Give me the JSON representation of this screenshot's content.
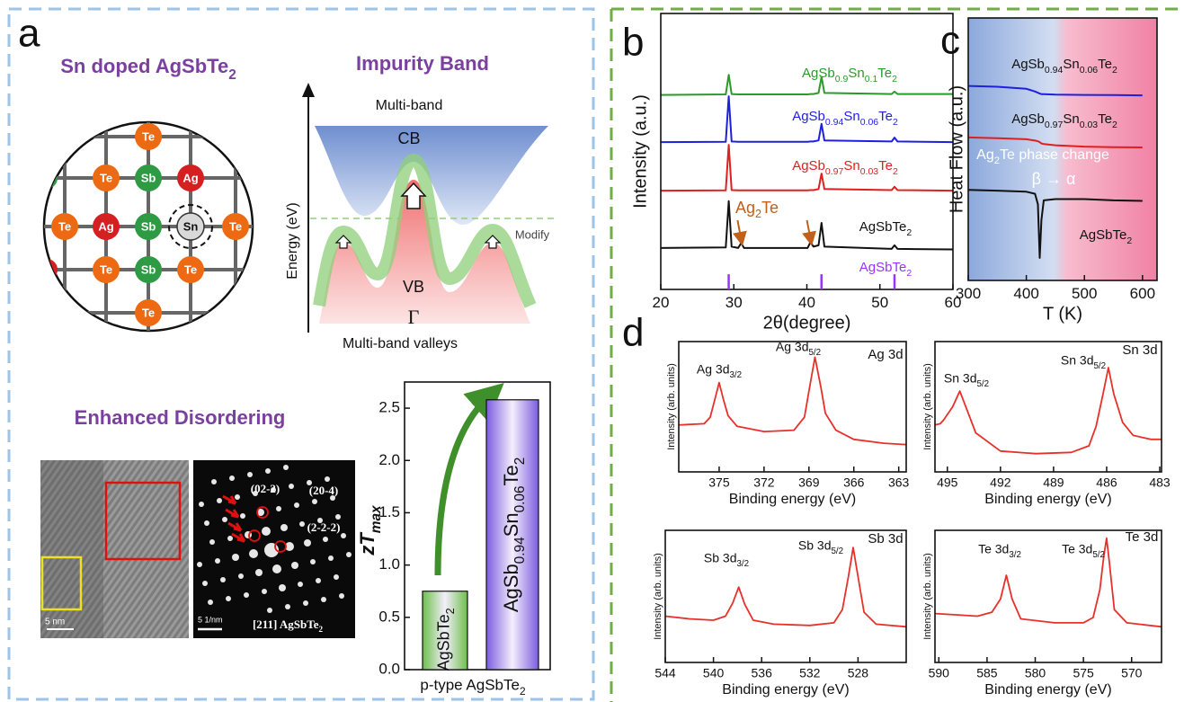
{
  "panel_labels": {
    "a": "a",
    "b": "b",
    "c": "c",
    "d": "d"
  },
  "schematic": {
    "structure_title": "Sn doped AgSbTe2",
    "atoms": [
      {
        "label": "Te",
        "color": "#ee6a12"
      },
      {
        "label": "Te",
        "color": "#ee6a12"
      },
      {
        "label": "Sb",
        "color": "#2e9a44"
      },
      {
        "label": "Ag",
        "color": "#d42020"
      },
      {
        "label": "Te",
        "color": "#ee6a12"
      },
      {
        "label": "Ag",
        "color": "#d42020"
      },
      {
        "label": "Sb",
        "color": "#2e9a44"
      },
      {
        "label": "Sn",
        "color": "#d9d9d9"
      },
      {
        "label": "Te",
        "color": "#ee6a12"
      },
      {
        "label": "Te",
        "color": "#ee6a12"
      },
      {
        "label": "Sb",
        "color": "#2e9a44"
      },
      {
        "label": "Te",
        "color": "#ee6a12"
      },
      {
        "label": "Te",
        "color": "#ee6a12"
      }
    ],
    "band_title": "Impurity Band",
    "band_top": "Multi-band",
    "cb": "CB",
    "vb": "VB",
    "gamma": "Γ",
    "band_bottom": "Multi-band valleys",
    "energy_axis": "Energy (eV)",
    "modify": "Modify",
    "disorder_title": "Enhanced Disordering",
    "tem": {
      "scale_hrtem": "5 nm",
      "scale_saed": "5 1/nm",
      "zone": "[211] AgSbTe2",
      "spots": [
        "(02-2)",
        "(20-4)",
        "(2-2-2)"
      ]
    }
  },
  "chart_data": [
    {
      "type": "bar",
      "ylabel": "zTmax",
      "xlabel": "p-type AgSbTe2",
      "categories": [
        "AgSbTe2",
        "AgSb0.94Sn0.06Te2"
      ],
      "values": [
        0.75,
        2.58
      ],
      "colors": [
        "#6cbf4b",
        "#7b5ce0"
      ],
      "ylim": [
        0,
        2.75
      ],
      "yticks": [
        {
          "value": 0,
          "label": "0.0"
        },
        0.5,
        {
          "value": 1,
          "label": "1.0"
        },
        1.5,
        {
          "value": 2,
          "label": "2.0"
        },
        2.5
      ]
    },
    {
      "type": "line",
      "xlabel": "2θ(degree)",
      "ylabel": "Intensity (a.u.)",
      "xlim": [
        20,
        60
      ],
      "xticks": [
        20,
        30,
        40,
        50,
        60
      ],
      "ylim": [
        0,
        10
      ],
      "x": [
        20,
        28.9,
        29.3,
        29.7,
        30.6,
        31,
        31.4,
        40.1,
        40.5,
        40.9,
        41.6,
        42,
        42.4,
        51.6,
        52,
        52.4,
        60
      ],
      "series": [
        {
          "name": "AgSb0.9Sn0.1Te2",
          "color": "#2a9a2a",
          "values": [
            7.05,
            7.07,
            7.78,
            7.08,
            7.07,
            7.07,
            7.07,
            7.07,
            7.08,
            7.08,
            7.12,
            7.7,
            7.12,
            7.08,
            7.17,
            7.08,
            7.08
          ]
        },
        {
          "name": "AgSb0.94Sn0.06Te2",
          "color": "#1f1fe0",
          "values": [
            5.34,
            5.35,
            7.0,
            5.36,
            5.35,
            5.35,
            5.35,
            5.35,
            5.36,
            5.36,
            5.4,
            6.0,
            5.4,
            5.36,
            5.5,
            5.36,
            5.34
          ]
        },
        {
          "name": "AgSb0.97Sn0.03Te2",
          "color": "#e01f1f",
          "values": [
            3.58,
            3.59,
            5.24,
            3.6,
            3.59,
            3.59,
            3.59,
            3.59,
            3.6,
            3.6,
            3.64,
            4.2,
            3.64,
            3.6,
            3.72,
            3.6,
            3.58
          ]
        },
        {
          "name": "AgSbTe2",
          "color": "#111111",
          "values": [
            1.5,
            1.52,
            3.2,
            1.55,
            1.5,
            1.68,
            1.5,
            1.5,
            1.72,
            1.55,
            1.6,
            2.41,
            1.55,
            1.47,
            1.6,
            1.47,
            1.45
          ]
        }
      ],
      "reference": {
        "name": "AgSbTe2",
        "color": "#9933ff",
        "x": [
          29.3,
          42,
          52
        ],
        "values": [
          0.55,
          0.55,
          0.55
        ]
      },
      "annotation": {
        "text": "Ag2Te",
        "color": "#c0601a",
        "x": [
          31,
          40.5
        ]
      }
    },
    {
      "type": "line",
      "xlabel": "T (K)",
      "ylabel": "Heat Flow (a.u.)",
      "xlim": [
        300,
        625
      ],
      "xticks": [
        300,
        400,
        500,
        600
      ],
      "ylim": [
        0,
        10
      ],
      "background_colors": [
        "#7f9fd8",
        "#f07aa0"
      ],
      "x": [
        300,
        350,
        400,
        415,
        420,
        423,
        426,
        430,
        450,
        500,
        550,
        600
      ],
      "series": [
        {
          "name": "AgSb0.94Sn0.06Te2",
          "color": "#1f1fe0",
          "values": [
            7.41,
            7.38,
            7.3,
            7.2,
            7.15,
            7.12,
            7.1,
            7.1,
            7.08,
            7.07,
            7.06,
            7.05
          ]
        },
        {
          "name": "AgSb0.97Sn0.03Te2",
          "color": "#e01f1f",
          "values": [
            5.45,
            5.42,
            5.38,
            5.33,
            5.3,
            5.27,
            5.22,
            5.2,
            5.15,
            5.1,
            5.08,
            5.07
          ]
        },
        {
          "name": "AgSbTe2",
          "color": "#111111",
          "values": [
            3.45,
            3.42,
            3.38,
            3.3,
            2.9,
            0.86,
            2.3,
            3.05,
            3.1,
            3.1,
            3.05,
            3.03
          ]
        }
      ],
      "annotations": [
        "Ag2Te phase change",
        "β → α"
      ]
    },
    {
      "type": "line",
      "title": "Ag 3d",
      "peak_labels": [
        "Ag 3d3/2",
        "Ag 3d5/2"
      ],
      "xlabel": "Binding energy (eV)",
      "ylabel": "Intensity (arb. units)",
      "xlim": [
        377.7,
        362.5
      ],
      "xticks": [
        375,
        372,
        369,
        366,
        363
      ],
      "ylim": [
        0,
        10
      ],
      "x": [
        377.7,
        376,
        375.6,
        375.3,
        375,
        374.7,
        374.4,
        373.8,
        372,
        370,
        369.3,
        369,
        368.6,
        368.2,
        367.9,
        367.2,
        366,
        364,
        362.5
      ],
      "series": [
        {
          "color": "#e8302a",
          "values": [
            3.6,
            3.7,
            4.2,
            5.5,
            6.85,
            5.5,
            4.3,
            3.5,
            3.1,
            3.2,
            4.2,
            6.2,
            8.8,
            6.5,
            4.5,
            3.2,
            2.5,
            2.2,
            2.1
          ]
        }
      ]
    },
    {
      "type": "line",
      "title": "Sn 3d",
      "peak_labels": [
        "Sn 3d5/2",
        "Sn 3d5/2"
      ],
      "xlabel": "Binding energy (eV)",
      "ylabel": "Intensity (arb. units)",
      "xlim": [
        495.7,
        482.9
      ],
      "xticks": [
        495,
        492,
        489,
        486,
        483
      ],
      "ylim": [
        0,
        10
      ],
      "x": [
        495.7,
        495.4,
        495.2,
        494.7,
        494.3,
        493.9,
        493.4,
        492,
        490,
        488,
        487,
        486.6,
        486.2,
        485.9,
        485.6,
        485.1,
        484.5,
        483.5,
        482.9
      ],
      "series": [
        {
          "color": "#e8302a",
          "values": [
            3.6,
            3.7,
            4.0,
            5.0,
            6.2,
            4.8,
            3.0,
            1.6,
            1.4,
            1.5,
            2.0,
            3.5,
            6.0,
            8.0,
            6.0,
            3.8,
            2.8,
            2.5,
            2.5
          ]
        }
      ]
    },
    {
      "type": "line",
      "title": "Sb 3d",
      "peak_labels": [
        "Sb 3d3/2",
        "Sb 3d5/2"
      ],
      "xlabel": "Binding energy (eV)",
      "ylabel": "Intensity (arb. units)",
      "xlim": [
        544,
        524
      ],
      "xticks": [
        544,
        540,
        536,
        532,
        528
      ],
      "ylim": [
        0,
        10
      ],
      "x": [
        544,
        542,
        540,
        539,
        538.4,
        537.9,
        537.4,
        536.7,
        535,
        532,
        530,
        529.3,
        528.8,
        528.4,
        528,
        527.5,
        526.5,
        524
      ],
      "series": [
        {
          "color": "#e8302a",
          "values": [
            3.5,
            3.3,
            3.2,
            3.5,
            4.5,
            5.7,
            4.4,
            3.2,
            2.9,
            2.8,
            3.0,
            4.0,
            6.5,
            8.7,
            6.5,
            3.8,
            2.9,
            2.7
          ]
        }
      ]
    },
    {
      "type": "line",
      "title": "Te 3d",
      "peak_labels": [
        "Te 3d3/2",
        "Te 3d5/2"
      ],
      "xlabel": "Binding energy (eV)",
      "ylabel": "Intensity (arb. units)",
      "xlim": [
        590.4,
        566.9
      ],
      "xticks": [
        590,
        585,
        580,
        575,
        570
      ],
      "ylim": [
        0,
        10
      ],
      "x": [
        590.4,
        588,
        586,
        584.5,
        583.6,
        583,
        582.4,
        581.5,
        578,
        575,
        574,
        573.3,
        572.9,
        572.6,
        572.3,
        571.8,
        570.5,
        566.9
      ],
      "series": [
        {
          "color": "#e8302a",
          "values": [
            3.7,
            3.6,
            3.5,
            3.8,
            4.8,
            6.6,
            4.8,
            3.3,
            3.0,
            3.0,
            3.4,
            5.5,
            8.0,
            9.4,
            7.5,
            4.0,
            3.0,
            2.7
          ]
        }
      ]
    }
  ]
}
